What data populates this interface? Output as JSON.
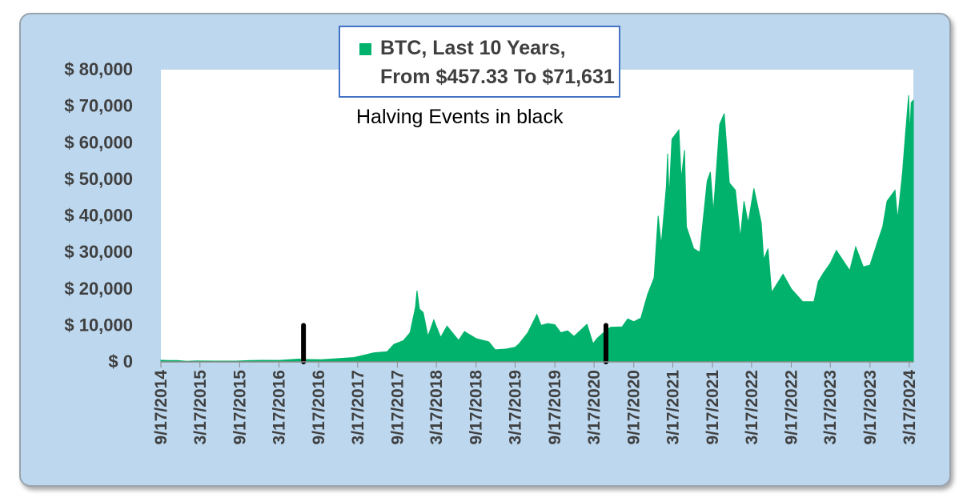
{
  "chart_data": {
    "type": "area",
    "legend": "BTC, Last 10 Years,",
    "legend_line2": "From $457.33 To $71,631",
    "annotation": "Halving Events in black",
    "ylim": [
      0,
      80000
    ],
    "xlim": [
      "2014-09-17",
      "2024-04-05"
    ],
    "y_ticks": [
      0,
      10000,
      20000,
      30000,
      40000,
      50000,
      60000,
      70000,
      80000
    ],
    "y_tick_labels": [
      "$ 0",
      "$ 10,000",
      "$ 20,000",
      "$ 30,000",
      "$ 40,000",
      "$ 50,000",
      "$ 60,000",
      "$ 70,000",
      "$ 80,000"
    ],
    "x_tick_labels": [
      "9/17/2014",
      "3/17/2015",
      "9/17/2015",
      "3/17/2016",
      "9/17/2016",
      "3/17/2017",
      "9/17/2017",
      "3/17/2018",
      "9/17/2018",
      "3/17/2019",
      "9/17/2019",
      "3/17/2020",
      "9/17/2020",
      "3/17/2021",
      "9/17/2021",
      "3/17/2022",
      "9/17/2022",
      "3/17/2023",
      "9/17/2023",
      "3/17/2024"
    ],
    "x_tick_dates": [
      "2014-09-17",
      "2015-03-17",
      "2015-09-17",
      "2016-03-17",
      "2016-09-17",
      "2017-03-17",
      "2017-09-17",
      "2018-03-17",
      "2018-09-17",
      "2019-03-17",
      "2019-09-17",
      "2020-03-17",
      "2020-09-17",
      "2021-03-17",
      "2021-09-17",
      "2022-03-17",
      "2022-09-17",
      "2023-03-17",
      "2023-09-17",
      "2024-03-17"
    ],
    "series": [
      {
        "name": "BTC, Last 10 Years,",
        "color": "#00b26b",
        "points": [
          [
            "2014-09-17",
            457
          ],
          [
            "2014-10-20",
            380
          ],
          [
            "2014-12-01",
            370
          ],
          [
            "2015-01-14",
            180
          ],
          [
            "2015-03-01",
            260
          ],
          [
            "2015-06-01",
            230
          ],
          [
            "2015-09-01",
            230
          ],
          [
            "2015-11-05",
            390
          ],
          [
            "2016-01-01",
            430
          ],
          [
            "2016-03-17",
            415
          ],
          [
            "2016-06-16",
            760
          ],
          [
            "2016-07-09",
            650
          ],
          [
            "2016-10-01",
            610
          ],
          [
            "2016-12-31",
            960
          ],
          [
            "2017-03-01",
            1200
          ],
          [
            "2017-06-01",
            2500
          ],
          [
            "2017-08-01",
            2800
          ],
          [
            "2017-09-01",
            4800
          ],
          [
            "2017-10-15",
            5800
          ],
          [
            "2017-11-15",
            8000
          ],
          [
            "2017-12-10",
            15000
          ],
          [
            "2017-12-17",
            19500
          ],
          [
            "2017-12-28",
            14500
          ],
          [
            "2018-01-15",
            13500
          ],
          [
            "2018-02-06",
            7000
          ],
          [
            "2018-03-05",
            11500
          ],
          [
            "2018-04-06",
            6700
          ],
          [
            "2018-05-05",
            9800
          ],
          [
            "2018-06-28",
            5900
          ],
          [
            "2018-07-25",
            8300
          ],
          [
            "2018-09-17",
            6400
          ],
          [
            "2018-11-15",
            5500
          ],
          [
            "2018-12-15",
            3300
          ],
          [
            "2019-02-01",
            3500
          ],
          [
            "2019-03-17",
            4000
          ],
          [
            "2019-04-05",
            5000
          ],
          [
            "2019-05-15",
            8000
          ],
          [
            "2019-06-26",
            13000
          ],
          [
            "2019-07-15",
            10000
          ],
          [
            "2019-08-15",
            10500
          ],
          [
            "2019-09-17",
            10200
          ],
          [
            "2019-10-15",
            8000
          ],
          [
            "2019-11-15",
            8500
          ],
          [
            "2019-12-15",
            7000
          ],
          [
            "2020-02-13",
            10300
          ],
          [
            "2020-03-12",
            5000
          ],
          [
            "2020-04-01",
            6500
          ],
          [
            "2020-05-11",
            8600
          ],
          [
            "2020-06-01",
            9500
          ],
          [
            "2020-07-25",
            9600
          ],
          [
            "2020-08-20",
            11800
          ],
          [
            "2020-09-17",
            11000
          ],
          [
            "2020-10-20",
            12000
          ],
          [
            "2020-11-20",
            18500
          ],
          [
            "2020-12-20",
            23000
          ],
          [
            "2021-01-08",
            40000
          ],
          [
            "2021-01-22",
            32000
          ],
          [
            "2021-02-15",
            48000
          ],
          [
            "2021-02-21",
            57000
          ],
          [
            "2021-02-28",
            45000
          ],
          [
            "2021-03-13",
            61000
          ],
          [
            "2021-04-14",
            63500
          ],
          [
            "2021-04-25",
            50000
          ],
          [
            "2021-05-10",
            58000
          ],
          [
            "2021-05-19",
            37000
          ],
          [
            "2021-06-22",
            31000
          ],
          [
            "2021-07-20",
            30000
          ],
          [
            "2021-08-23",
            49500
          ],
          [
            "2021-09-07",
            52000
          ],
          [
            "2021-09-21",
            41000
          ],
          [
            "2021-10-20",
            65000
          ],
          [
            "2021-11-10",
            68000
          ],
          [
            "2021-12-04",
            49000
          ],
          [
            "2022-01-01",
            47000
          ],
          [
            "2022-01-24",
            34000
          ],
          [
            "2022-02-10",
            44000
          ],
          [
            "2022-03-01",
            38000
          ],
          [
            "2022-03-28",
            47500
          ],
          [
            "2022-05-01",
            38000
          ],
          [
            "2022-05-12",
            28000
          ],
          [
            "2022-06-01",
            31000
          ],
          [
            "2022-06-18",
            19000
          ],
          [
            "2022-08-10",
            24000
          ],
          [
            "2022-09-17",
            20000
          ],
          [
            "2022-11-09",
            16500
          ],
          [
            "2022-12-31",
            16500
          ],
          [
            "2023-01-20",
            22000
          ],
          [
            "2023-02-15",
            24500
          ],
          [
            "2023-03-17",
            27000
          ],
          [
            "2023-04-14",
            30500
          ],
          [
            "2023-06-15",
            25000
          ],
          [
            "2023-07-13",
            31500
          ],
          [
            "2023-08-17",
            26000
          ],
          [
            "2023-09-17",
            26500
          ],
          [
            "2023-10-23",
            33000
          ],
          [
            "2023-11-15",
            37000
          ],
          [
            "2023-12-05",
            44000
          ],
          [
            "2024-01-11",
            47000
          ],
          [
            "2024-01-23",
            39000
          ],
          [
            "2024-02-15",
            52000
          ],
          [
            "2024-02-28",
            62000
          ],
          [
            "2024-03-14",
            73000
          ],
          [
            "2024-03-20",
            62000
          ],
          [
            "2024-03-26",
            71000
          ],
          [
            "2024-04-05",
            71631
          ]
        ]
      }
    ],
    "halving_events": [
      {
        "date": "2016-07-09",
        "value": 10000
      },
      {
        "date": "2020-05-11",
        "value": 10000
      }
    ],
    "halving_color": "#000000",
    "grid": false,
    "legend_position": "top-center"
  }
}
